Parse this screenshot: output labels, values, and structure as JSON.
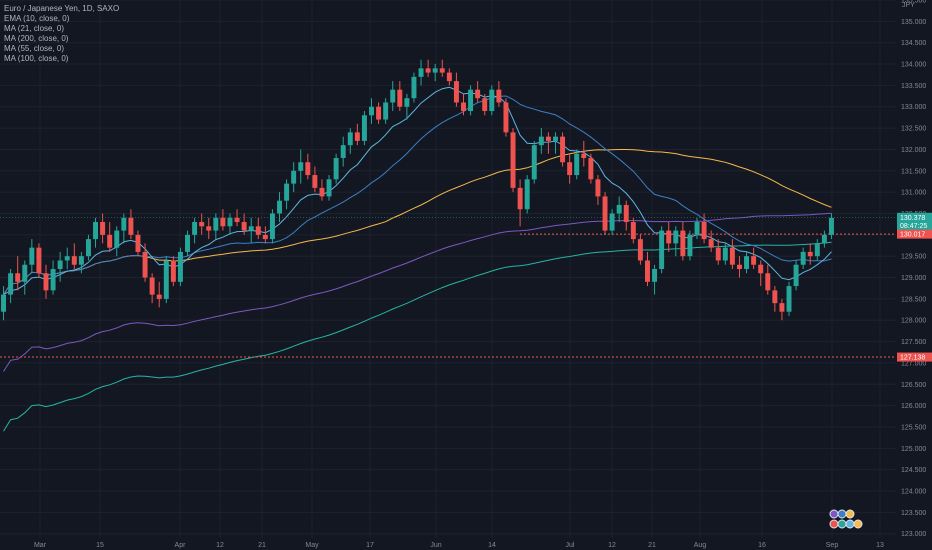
{
  "header": {
    "symbol": "Euro / Japanese Yen, 1D, SAXO",
    "indicators": [
      "EMA (10, close, 0)",
      "MA (21, close, 0)",
      "MA (200, close, 0)",
      "MA (55, close, 0)",
      "MA (100, close, 0)"
    ],
    "currency": "JPY"
  },
  "colors": {
    "background": "#131722",
    "grid": "#1e222d",
    "up": "#26a69a",
    "down": "#ef5350",
    "ema10": "#5fb6e4",
    "ma21": "#3d7fc4",
    "ma200": "#26b5a4",
    "ma55": "#f6b94b",
    "ma100": "#7e57c2"
  },
  "chart_data": {
    "type": "candlestick",
    "x_tick_labels": [
      "Mar",
      "15",
      "Apr",
      "12",
      "21",
      "May",
      "17",
      "Jun",
      "14",
      "Jul",
      "12",
      "21",
      "Aug",
      "16",
      "Sep",
      "13"
    ],
    "y_ticks": [
      "135.500",
      "135.000",
      "134.500",
      "134.000",
      "133.500",
      "133.000",
      "132.500",
      "132.000",
      "131.500",
      "131.000",
      "130.500",
      "130.000",
      "129.500",
      "129.000",
      "128.500",
      "128.000",
      "127.500",
      "127.000",
      "126.500",
      "126.000",
      "125.500",
      "125.000",
      "124.500",
      "124.000",
      "123.500",
      "123.000"
    ],
    "ylim": [
      122.9,
      135.5
    ],
    "price_labels": {
      "last_price": "130.378",
      "countdown": "08:47:25",
      "hline_high": "130.017",
      "hline_low": "127.138"
    },
    "hline_values": [
      130.017,
      127.138
    ],
    "ohlc": [
      [
        128.2,
        128.8,
        128.0,
        128.6
      ],
      [
        128.6,
        129.2,
        128.4,
        129.1
      ],
      [
        129.1,
        129.5,
        128.7,
        128.9
      ],
      [
        128.9,
        129.4,
        128.6,
        129.3
      ],
      [
        129.3,
        129.9,
        129.1,
        129.7
      ],
      [
        129.7,
        129.8,
        129.0,
        129.1
      ],
      [
        129.1,
        129.3,
        128.5,
        128.7
      ],
      [
        128.7,
        129.4,
        128.6,
        129.2
      ],
      [
        129.2,
        129.6,
        128.9,
        129.4
      ],
      [
        129.4,
        129.7,
        129.2,
        129.5
      ],
      [
        129.5,
        129.8,
        129.2,
        129.3
      ],
      [
        129.3,
        129.6,
        129.1,
        129.5
      ],
      [
        129.5,
        130.0,
        129.4,
        129.9
      ],
      [
        129.9,
        130.4,
        129.7,
        130.3
      ],
      [
        130.3,
        130.5,
        129.8,
        130.0
      ],
      [
        130.0,
        130.3,
        129.6,
        129.7
      ],
      [
        129.7,
        130.2,
        129.5,
        130.1
      ],
      [
        130.1,
        130.5,
        129.8,
        130.4
      ],
      [
        130.4,
        130.6,
        129.9,
        130.0
      ],
      [
        130.0,
        130.1,
        129.5,
        129.6
      ],
      [
        129.6,
        129.8,
        128.9,
        129.0
      ],
      [
        129.0,
        129.1,
        128.4,
        128.6
      ],
      [
        128.6,
        128.9,
        128.3,
        128.5
      ],
      [
        128.5,
        129.5,
        128.4,
        129.4
      ],
      [
        129.4,
        129.5,
        128.8,
        128.9
      ],
      [
        128.9,
        129.7,
        128.8,
        129.6
      ],
      [
        129.6,
        130.1,
        129.5,
        130.0
      ],
      [
        130.0,
        130.4,
        129.8,
        130.3
      ],
      [
        130.3,
        130.5,
        130.0,
        130.2
      ],
      [
        130.2,
        130.4,
        129.9,
        130.1
      ],
      [
        130.1,
        130.5,
        129.9,
        130.4
      ],
      [
        130.4,
        130.6,
        130.1,
        130.2
      ],
      [
        130.2,
        130.5,
        130.0,
        130.4
      ],
      [
        130.4,
        130.6,
        130.2,
        130.3
      ],
      [
        130.3,
        130.5,
        130.0,
        130.1
      ],
      [
        130.1,
        130.4,
        129.8,
        130.2
      ],
      [
        130.2,
        130.4,
        129.9,
        130.0
      ],
      [
        130.0,
        130.2,
        129.8,
        129.9
      ],
      [
        129.9,
        130.6,
        129.8,
        130.5
      ],
      [
        130.5,
        131.0,
        130.3,
        130.8
      ],
      [
        130.8,
        131.3,
        130.6,
        131.2
      ],
      [
        131.2,
        131.7,
        131.0,
        131.5
      ],
      [
        131.5,
        132.0,
        131.2,
        131.7
      ],
      [
        131.7,
        131.9,
        131.3,
        131.4
      ],
      [
        131.4,
        131.6,
        131.0,
        131.1
      ],
      [
        131.1,
        131.3,
        130.8,
        130.9
      ],
      [
        130.9,
        131.4,
        130.8,
        131.3
      ],
      [
        131.3,
        131.9,
        131.2,
        131.8
      ],
      [
        131.8,
        132.3,
        131.6,
        132.1
      ],
      [
        132.1,
        132.5,
        131.9,
        132.4
      ],
      [
        132.4,
        132.6,
        132.1,
        132.2
      ],
      [
        132.2,
        132.9,
        132.1,
        132.8
      ],
      [
        132.8,
        133.2,
        132.6,
        133.0
      ],
      [
        133.0,
        133.1,
        132.6,
        132.7
      ],
      [
        132.7,
        133.2,
        132.6,
        133.1
      ],
      [
        133.1,
        133.6,
        132.9,
        133.4
      ],
      [
        133.4,
        133.6,
        132.9,
        133.0
      ],
      [
        133.0,
        133.3,
        132.7,
        133.2
      ],
      [
        133.2,
        133.8,
        133.1,
        133.7
      ],
      [
        133.7,
        134.1,
        133.5,
        133.9
      ],
      [
        133.9,
        134.1,
        133.7,
        133.8
      ],
      [
        133.8,
        134.0,
        133.6,
        133.9
      ],
      [
        133.9,
        134.1,
        133.7,
        133.8
      ],
      [
        133.8,
        133.9,
        133.5,
        133.6
      ],
      [
        133.6,
        133.8,
        133.0,
        133.1
      ],
      [
        133.1,
        133.3,
        132.8,
        132.9
      ],
      [
        132.9,
        133.5,
        132.8,
        133.4
      ],
      [
        133.4,
        133.6,
        133.1,
        133.2
      ],
      [
        133.2,
        133.3,
        132.8,
        132.9
      ],
      [
        132.9,
        133.5,
        132.8,
        133.4
      ],
      [
        133.4,
        133.6,
        133.0,
        133.1
      ],
      [
        133.1,
        133.2,
        132.3,
        132.4
      ],
      [
        132.4,
        132.5,
        131.0,
        131.1
      ],
      [
        131.1,
        131.3,
        130.2,
        130.6
      ],
      [
        130.6,
        131.4,
        130.5,
        131.3
      ],
      [
        131.3,
        132.2,
        131.2,
        132.1
      ],
      [
        132.1,
        132.5,
        131.9,
        132.3
      ],
      [
        132.3,
        132.4,
        131.9,
        132.2
      ],
      [
        132.2,
        132.4,
        131.9,
        132.3
      ],
      [
        132.3,
        132.4,
        131.6,
        131.7
      ],
      [
        131.7,
        131.9,
        131.2,
        131.4
      ],
      [
        131.4,
        132.0,
        131.3,
        131.9
      ],
      [
        131.9,
        132.2,
        131.6,
        131.8
      ],
      [
        131.8,
        131.9,
        131.2,
        131.3
      ],
      [
        131.3,
        131.4,
        130.7,
        130.9
      ],
      [
        130.9,
        131.0,
        130.0,
        130.1
      ],
      [
        130.1,
        130.6,
        130.0,
        130.5
      ],
      [
        130.5,
        130.9,
        130.3,
        130.7
      ],
      [
        130.7,
        130.8,
        130.1,
        130.3
      ],
      [
        130.3,
        130.4,
        129.8,
        129.9
      ],
      [
        129.9,
        130.0,
        129.3,
        129.4
      ],
      [
        129.4,
        129.6,
        128.8,
        128.9
      ],
      [
        128.9,
        129.3,
        128.6,
        129.2
      ],
      [
        129.2,
        130.2,
        129.1,
        130.1
      ],
      [
        130.1,
        130.3,
        129.6,
        129.8
      ],
      [
        129.8,
        130.2,
        129.5,
        130.1
      ],
      [
        130.1,
        130.3,
        129.4,
        129.5
      ],
      [
        129.5,
        130.1,
        129.4,
        130.0
      ],
      [
        130.0,
        130.4,
        129.9,
        130.3
      ],
      [
        130.3,
        130.5,
        129.8,
        129.9
      ],
      [
        129.9,
        130.1,
        129.6,
        129.7
      ],
      [
        129.7,
        129.9,
        129.3,
        129.4
      ],
      [
        129.4,
        129.8,
        129.3,
        129.7
      ],
      [
        129.7,
        129.9,
        129.2,
        129.3
      ],
      [
        129.3,
        129.5,
        129.0,
        129.2
      ],
      [
        129.2,
        129.6,
        129.1,
        129.5
      ],
      [
        129.5,
        129.7,
        129.2,
        129.3
      ],
      [
        129.3,
        129.4,
        128.8,
        129.1
      ],
      [
        129.1,
        129.3,
        128.6,
        128.7
      ],
      [
        128.7,
        128.8,
        128.2,
        128.4
      ],
      [
        128.4,
        128.5,
        128.0,
        128.2
      ],
      [
        128.2,
        128.9,
        128.1,
        128.8
      ],
      [
        128.8,
        129.4,
        128.7,
        129.3
      ],
      [
        129.3,
        129.7,
        129.2,
        129.6
      ],
      [
        129.6,
        129.8,
        129.3,
        129.5
      ],
      [
        129.5,
        129.9,
        129.4,
        129.8
      ],
      [
        129.8,
        130.1,
        129.7,
        130.0
      ],
      [
        130.0,
        130.5,
        129.9,
        130.4
      ]
    ]
  }
}
